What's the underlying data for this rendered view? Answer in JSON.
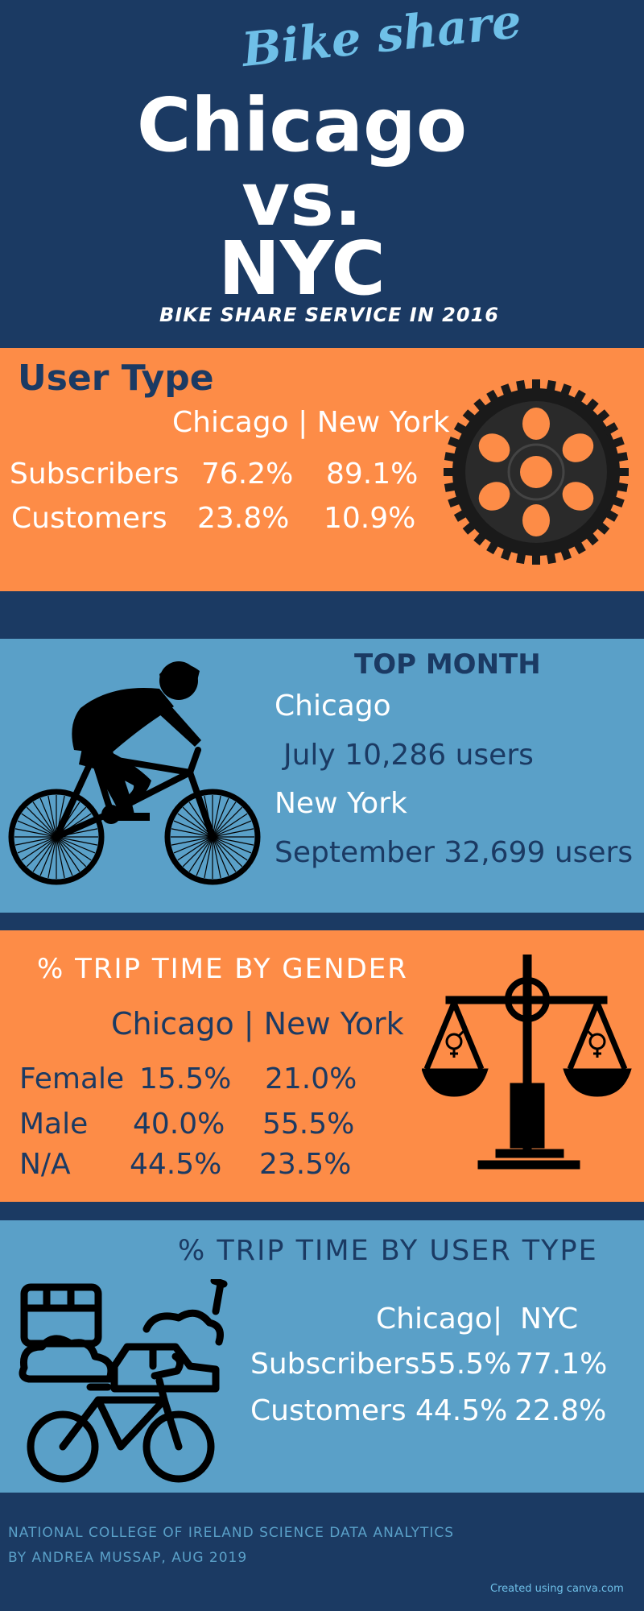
{
  "header": {
    "script_title": "Bike share",
    "title_line1": "Chicago",
    "title_line2": "vs.",
    "title_line3": "NYC",
    "tagline": "BIKE SHARE SERVICE IN 2016"
  },
  "user_type": {
    "heading": "User Type",
    "columns": "Chicago | New York",
    "rows": [
      {
        "label": "Subscribers",
        "chicago": "76.2%",
        "ny": "89.1%"
      },
      {
        "label": "Customers",
        "chicago": "23.8%",
        "ny": "10.9%"
      }
    ],
    "icon": "gear-icon"
  },
  "top_month": {
    "heading": "TOP MONTH",
    "chicago_label": "Chicago",
    "chicago_value": "July 10,286 users",
    "ny_label": "New York",
    "ny_value": "September 32,699 users",
    "icon": "cyclist-icon"
  },
  "gender": {
    "heading": "% TRIP TIME BY GENDER",
    "columns": "Chicago | New York",
    "rows": [
      {
        "label": "Female",
        "chicago": "15.5%",
        "ny": "21.0%"
      },
      {
        "label": "Male",
        "chicago": "40.0%",
        "ny": "55.5%"
      },
      {
        "label": "N/A",
        "chicago": "44.5%",
        "ny": "23.5%"
      }
    ],
    "icon": "scales-icon"
  },
  "trip_user_type": {
    "heading": "% TRIP TIME BY USER TYPE",
    "col_chicago": "Chicago",
    "col_sep": "|",
    "col_nyc": "NYC",
    "rows": [
      {
        "label": "Subscribers",
        "chicago": "55.5%",
        "nyc": "77.1%"
      },
      {
        "label": "Customers",
        "chicago": "44.5%",
        "nyc": "22.8%"
      }
    ],
    "icon": "transport-icon"
  },
  "footer": {
    "line1": "NATIONAL COLLEGE OF IRELAND SCIENCE DATA ANALYTICS",
    "line2": "BY ANDREA MUSSAP, AUG 2019",
    "credit": "Created using canva.com"
  },
  "colors": {
    "navy": "#1b3a63",
    "orange": "#fd8c47",
    "blue": "#5aa0c8",
    "light_blue": "#6fc0e8"
  }
}
